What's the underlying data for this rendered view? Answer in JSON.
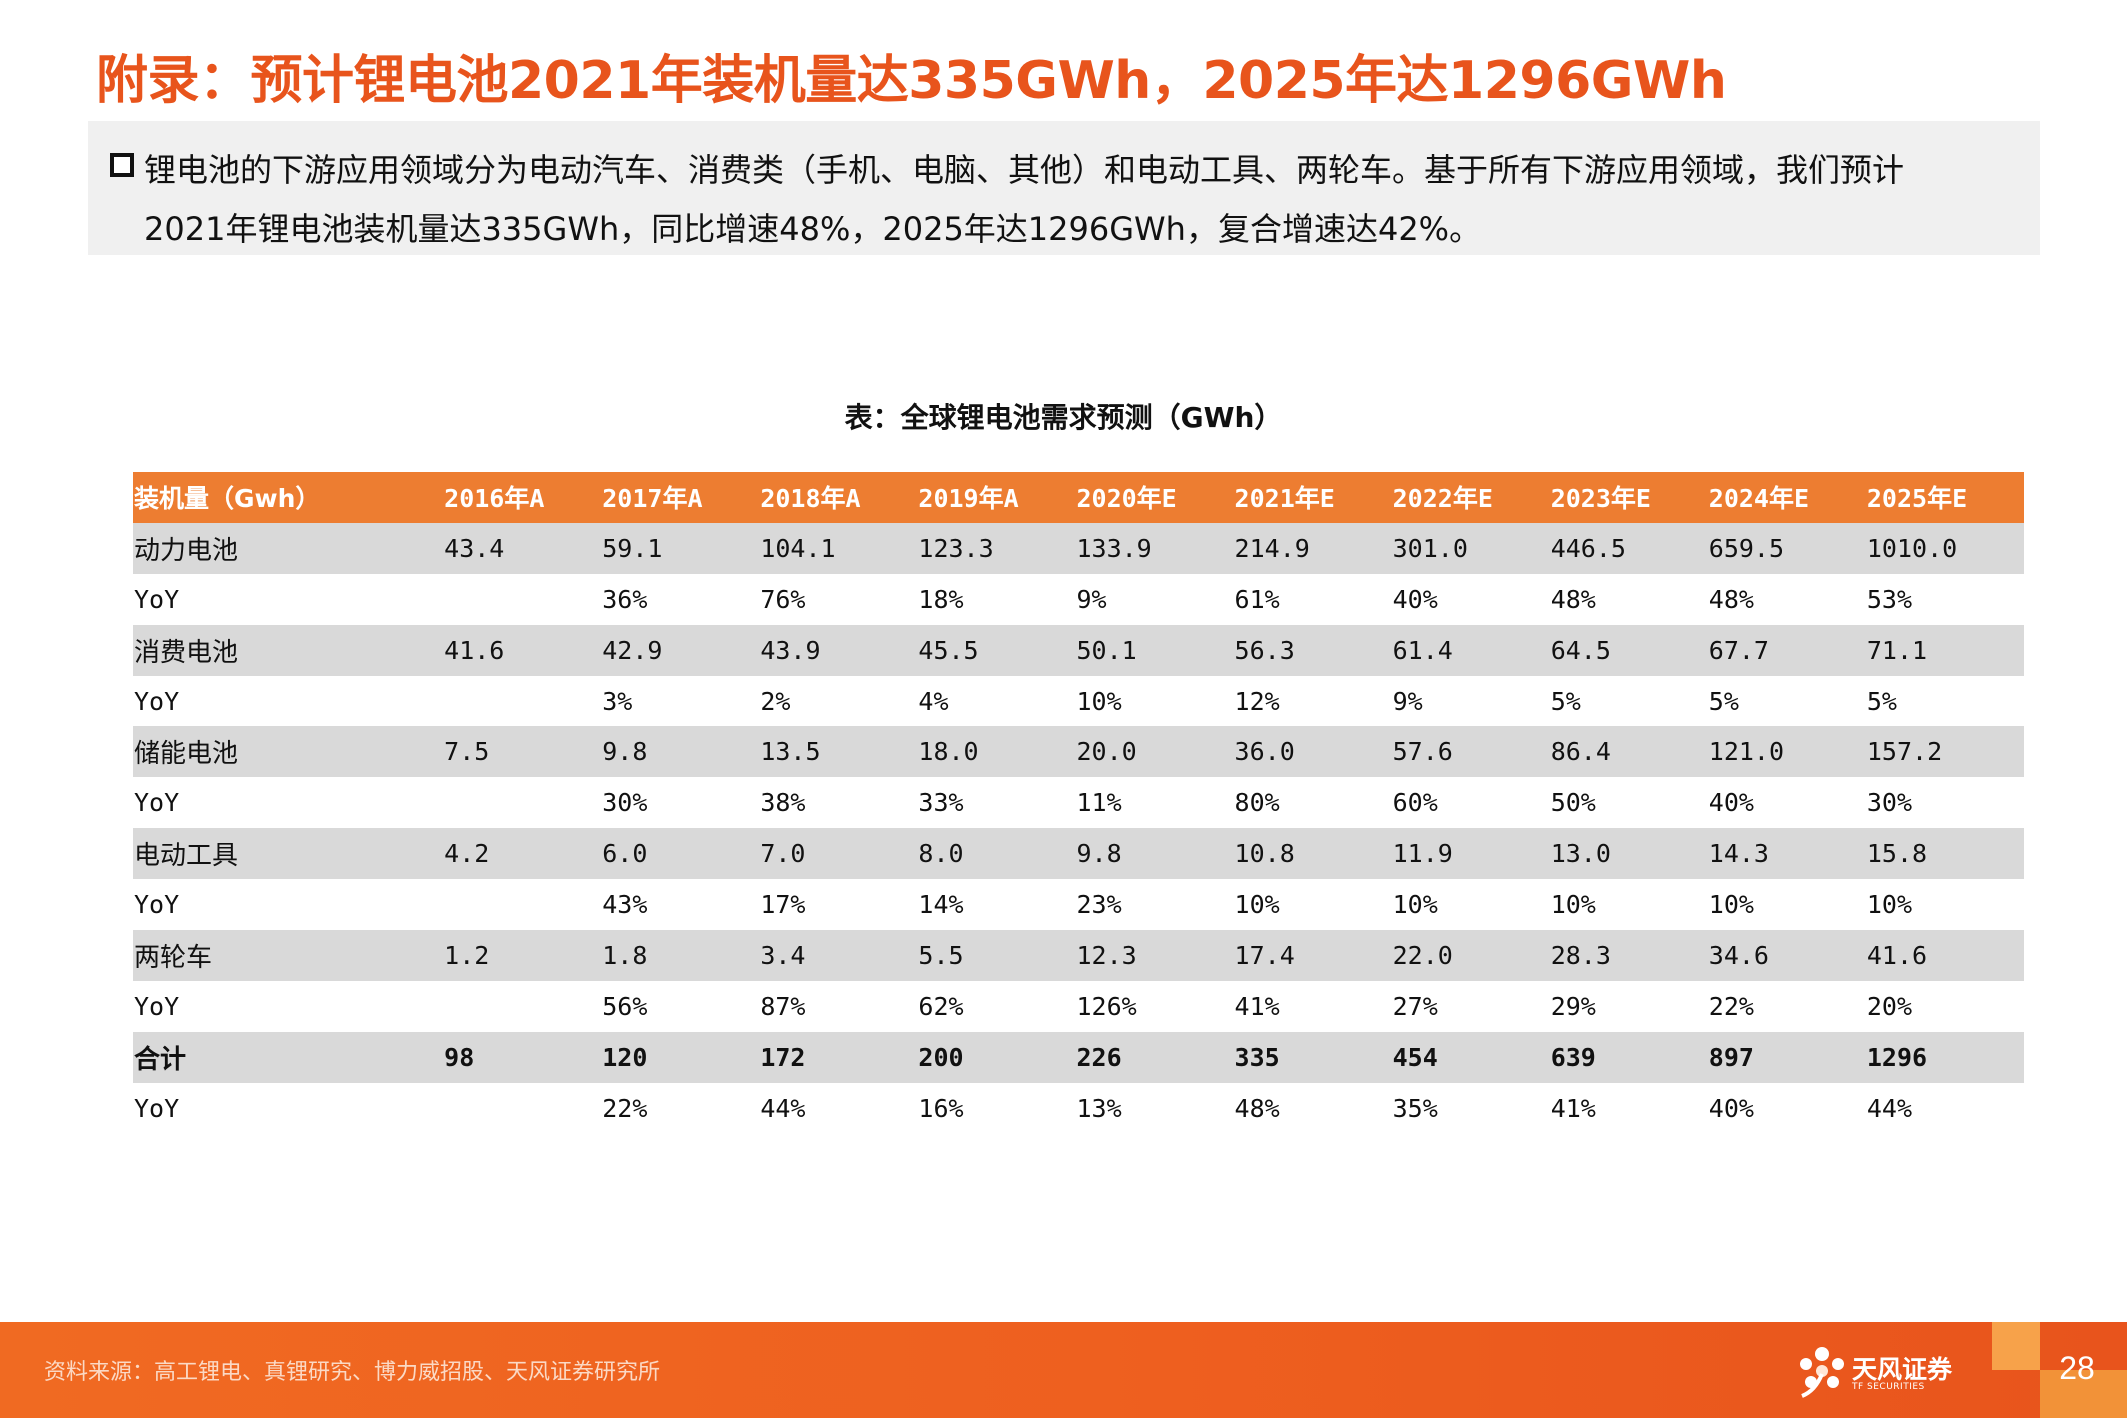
{
  "title": "附录：预计锂电池2021年装机量达335GWh，2025年达1296GWh",
  "summary": {
    "line1": "锂电池的下游应用领域分为电动汽车、消费类（手机、电脑、其他）和电动工具、两轮车。基于所有下游应用领域，我们预计",
    "line2": "2021年锂电池装机量达335GWh，同比增速48%，2025年达1296GWh，复合增速达42%。"
  },
  "table": {
    "caption": "表：全球锂电池需求预测（GWh）",
    "header": [
      "装机量（Gwh）",
      "2016年A",
      "2017年A",
      "2018年A",
      "2019年A",
      "2020年E",
      "2021年E",
      "2022年E",
      "2023年E",
      "2024年E",
      "2025年E"
    ],
    "rows": [
      [
        "动力电池",
        "43.4",
        "59.1",
        "104.1",
        "123.3",
        "133.9",
        "214.9",
        "301.0",
        "446.5",
        "659.5",
        "1010.0"
      ],
      [
        "YoY",
        "",
        "36%",
        "76%",
        "18%",
        "9%",
        "61%",
        "40%",
        "48%",
        "48%",
        "53%"
      ],
      [
        "消费电池",
        "41.6",
        "42.9",
        "43.9",
        "45.5",
        "50.1",
        "56.3",
        "61.4",
        "64.5",
        "67.7",
        "71.1"
      ],
      [
        "YoY",
        "",
        "3%",
        "2%",
        "4%",
        "10%",
        "12%",
        "9%",
        "5%",
        "5%",
        "5%"
      ],
      [
        "储能电池",
        "7.5",
        "9.8",
        "13.5",
        "18.0",
        "20.0",
        "36.0",
        "57.6",
        "86.4",
        "121.0",
        "157.2"
      ],
      [
        "YoY",
        "",
        "30%",
        "38%",
        "33%",
        "11%",
        "80%",
        "60%",
        "50%",
        "40%",
        "30%"
      ],
      [
        "电动工具",
        "4.2",
        "6.0",
        "7.0",
        "8.0",
        "9.8",
        "10.8",
        "11.9",
        "13.0",
        "14.3",
        "15.8"
      ],
      [
        "YoY",
        "",
        "43%",
        "17%",
        "14%",
        "23%",
        "10%",
        "10%",
        "10%",
        "10%",
        "10%"
      ],
      [
        "两轮车",
        "1.2",
        "1.8",
        "3.4",
        "5.5",
        "12.3",
        "17.4",
        "22.0",
        "28.3",
        "34.6",
        "41.6"
      ],
      [
        "YoY",
        "",
        "56%",
        "87%",
        "62%",
        "126%",
        "41%",
        "27%",
        "29%",
        "22%",
        "20%"
      ],
      [
        "合计",
        "98",
        "120",
        "172",
        "200",
        "226",
        "335",
        "454",
        "639",
        "897",
        "1296"
      ],
      [
        "YoY",
        "",
        "22%",
        "44%",
        "16%",
        "13%",
        "48%",
        "35%",
        "41%",
        "40%",
        "44%"
      ]
    ]
  },
  "footer": {
    "source": "资料来源：高工锂电、真锂研究、博力威招股、天风证券研究所",
    "logo_cn": "天风证券",
    "logo_en": "TF SECURITIES",
    "page_number": "28"
  },
  "colors": {
    "accent": "#e8541c",
    "header_fill": "#ed7d31",
    "row_shade": "#d9d9d9",
    "summary_bg": "#f0f0f0"
  },
  "icons": [
    "square-bullet-icon",
    "tf-securities-logo-icon"
  ]
}
